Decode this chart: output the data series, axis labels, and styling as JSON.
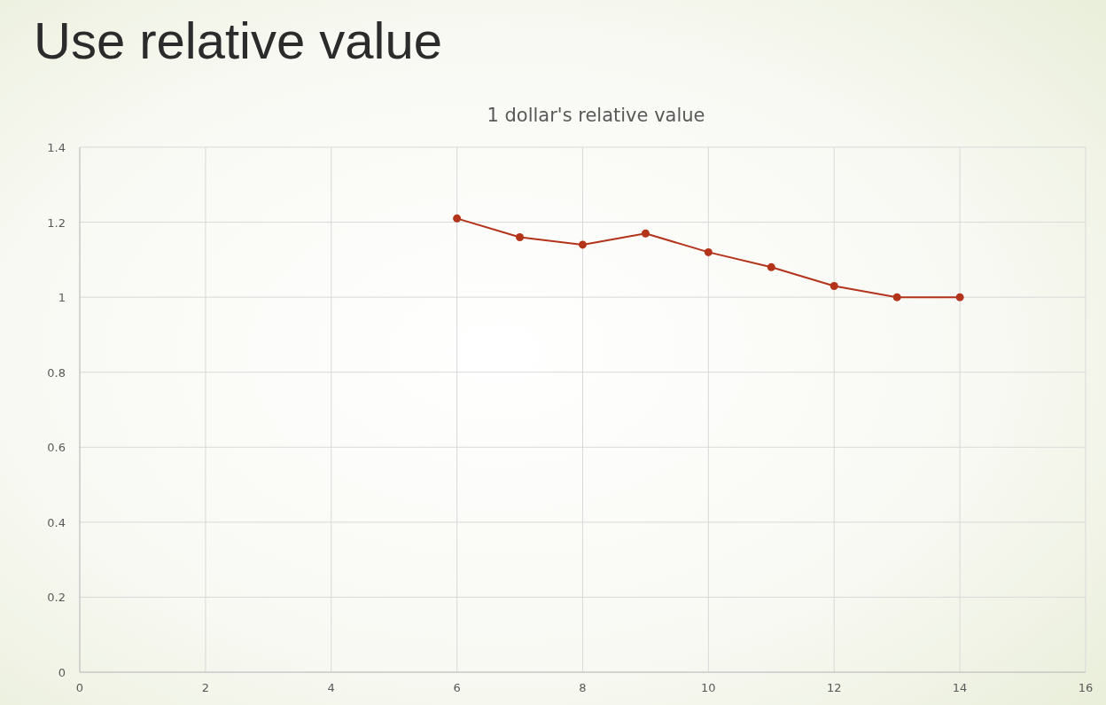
{
  "chart_data": {
    "type": "line",
    "title": "Use relative value",
    "subtitle": "1 dollar's relative value",
    "x": [
      6,
      7,
      8,
      9,
      10,
      11,
      12,
      13,
      14
    ],
    "series": [
      {
        "color": "#b3341b",
        "values": [
          1.21,
          1.16,
          1.14,
          1.17,
          1.12,
          1.08,
          1.03,
          1.0,
          1.0
        ]
      }
    ],
    "xlim": [
      0,
      16
    ],
    "xticks": [
      0,
      2,
      4,
      6,
      8,
      10,
      12,
      14,
      16
    ],
    "ylim": [
      0,
      1.4
    ],
    "yticks": [
      0,
      0.2,
      0.4,
      0.6,
      0.8,
      1,
      1.2,
      1.4
    ],
    "grid": true,
    "marker": "circle",
    "line_style": "solid"
  }
}
